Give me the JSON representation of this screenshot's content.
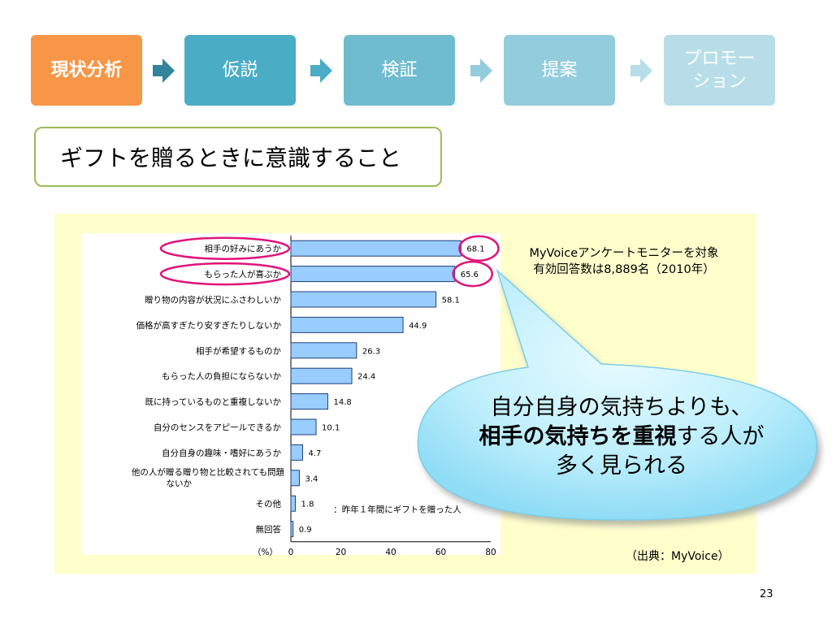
{
  "process_steps": [
    {
      "label": "現状分析",
      "color": "#f79646"
    },
    {
      "label": "仮説",
      "color": "#4bacc6"
    },
    {
      "label": "検証",
      "color": "#70bccf"
    },
    {
      "label": "提案",
      "color": "#93cddd"
    },
    {
      "label": "プロモー\nション",
      "color": "#b7dee8"
    }
  ],
  "step_arrow_colors": [
    "#31849b",
    "#4bacc6",
    "#93cddd",
    "#b7dee8"
  ],
  "slide_title": "ギフトを贈るときに意識すること",
  "survey_note": {
    "line1": "MyVoiceアンケートモニターを対象",
    "line2": "有効回答数は8,889名（2010年）"
  },
  "callout": {
    "line1": "自分自身の気持ちよりも、",
    "line2_bold": "相手の気持ちを重視",
    "line2_rest": "する人が",
    "line3": "多く見られる"
  },
  "source": "（出典：MyVoice）",
  "page_number": "23",
  "chart_data": {
    "type": "bar",
    "orientation": "horizontal",
    "categories": [
      "相手の好みにあうか",
      "もらった人が喜ぶか",
      "贈り物の内容が状況にふさわしいか",
      "価格が高すぎたり安すぎたりしないか",
      "相手が希望するものか",
      "もらった人の負担にならないか",
      "既に持っているものと重複しないか",
      "自分のセンスをアピールできるか",
      "自分自身の趣味・嗜好にあうか",
      "他の人が贈る贈り物と比較されても問題ないか",
      "その他",
      "無回答"
    ],
    "values": [
      68.1,
      65.6,
      58.1,
      44.9,
      26.3,
      24.4,
      14.8,
      10.1,
      4.7,
      3.4,
      1.8,
      0.9
    ],
    "value_labels": [
      "68.1",
      "65.6",
      "58.1",
      "44.9",
      "26.3",
      "24.4",
      "14.8",
      "10.1",
      "4.7",
      "3.4",
      "1.8",
      "0.9"
    ],
    "xlim": [
      0,
      80
    ],
    "xticks": [
      "0",
      "20",
      "40",
      "60",
      "80"
    ],
    "xlabel": "（%）",
    "annotation": "：昨年１年間にギフトを贈った人",
    "highlighted": [
      0,
      1
    ],
    "bar_color": "#99ccff",
    "highlight_color": "#e0147a"
  }
}
